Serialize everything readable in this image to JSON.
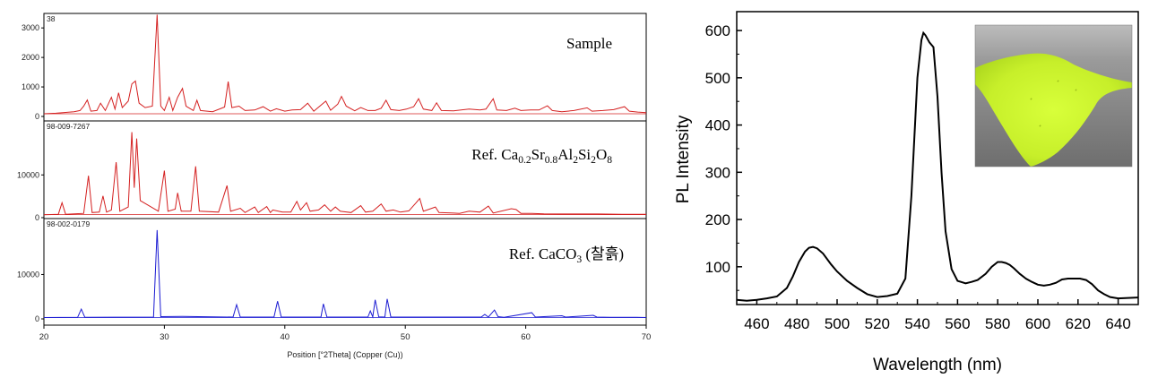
{
  "chart_data": [
    {
      "type": "line",
      "subtype": "stacked-xrd",
      "xlabel": "Position [°2Theta] (Copper (Cu))",
      "xlim": [
        20,
        70
      ],
      "x_ticks": [
        "20",
        "30",
        "40",
        "50",
        "60",
        "70"
      ],
      "panels": [
        {
          "id": "38",
          "label_parts": [
            "Sample"
          ],
          "color": "#d42020",
          "ylim": [
            0,
            3400
          ],
          "y_ticks": [
            "0",
            "1000",
            "2000",
            "3000"
          ],
          "baseline": 90,
          "points": [
            [
              20,
              90
            ],
            [
              21.0,
              110
            ],
            [
              22.5,
              160
            ],
            [
              23.0,
              200
            ],
            [
              23.3,
              350
            ],
            [
              23.6,
              560
            ],
            [
              23.9,
              180
            ],
            [
              24.4,
              200
            ],
            [
              24.7,
              450
            ],
            [
              25.1,
              200
            ],
            [
              25.6,
              650
            ],
            [
              25.9,
              250
            ],
            [
              26.2,
              800
            ],
            [
              26.5,
              300
            ],
            [
              27.0,
              520
            ],
            [
              27.3,
              1100
            ],
            [
              27.6,
              1200
            ],
            [
              27.9,
              450
            ],
            [
              28.4,
              300
            ],
            [
              29.0,
              350
            ],
            [
              29.4,
              3450
            ],
            [
              29.7,
              350
            ],
            [
              30.0,
              200
            ],
            [
              30.4,
              650
            ],
            [
              30.7,
              200
            ],
            [
              31.1,
              650
            ],
            [
              31.5,
              950
            ],
            [
              31.8,
              350
            ],
            [
              32.4,
              200
            ],
            [
              32.7,
              550
            ],
            [
              33.0,
              200
            ],
            [
              34.0,
              160
            ],
            [
              35.0,
              320
            ],
            [
              35.3,
              1180
            ],
            [
              35.6,
              300
            ],
            [
              36.2,
              350
            ],
            [
              36.7,
              200
            ],
            [
              37.5,
              220
            ],
            [
              38.2,
              330
            ],
            [
              38.8,
              180
            ],
            [
              39.3,
              260
            ],
            [
              40.0,
              180
            ],
            [
              40.6,
              220
            ],
            [
              41.3,
              230
            ],
            [
              41.9,
              450
            ],
            [
              42.4,
              180
            ],
            [
              43.4,
              520
            ],
            [
              43.8,
              210
            ],
            [
              44.4,
              420
            ],
            [
              44.7,
              680
            ],
            [
              45.1,
              350
            ],
            [
              45.8,
              190
            ],
            [
              46.3,
              300
            ],
            [
              46.9,
              200
            ],
            [
              47.5,
              200
            ],
            [
              48.0,
              280
            ],
            [
              48.4,
              550
            ],
            [
              48.8,
              230
            ],
            [
              49.5,
              200
            ],
            [
              50.1,
              250
            ],
            [
              50.7,
              330
            ],
            [
              51.1,
              600
            ],
            [
              51.5,
              250
            ],
            [
              52.2,
              200
            ],
            [
              52.6,
              460
            ],
            [
              53.0,
              200
            ],
            [
              54.0,
              190
            ],
            [
              55.3,
              250
            ],
            [
              56.2,
              220
            ],
            [
              56.7,
              250
            ],
            [
              57.3,
              600
            ],
            [
              57.6,
              220
            ],
            [
              58.4,
              200
            ],
            [
              59.1,
              280
            ],
            [
              59.6,
              200
            ],
            [
              60.4,
              220
            ],
            [
              61.1,
              220
            ],
            [
              61.8,
              360
            ],
            [
              62.2,
              200
            ],
            [
              63.0,
              160
            ],
            [
              64.0,
              200
            ],
            [
              65.1,
              290
            ],
            [
              65.5,
              180
            ],
            [
              66.4,
              200
            ],
            [
              67.3,
              230
            ],
            [
              68.2,
              330
            ],
            [
              68.6,
              180
            ],
            [
              69.3,
              150
            ],
            [
              70,
              130
            ]
          ]
        },
        {
          "id": "98-009-7267",
          "label_parts": [
            "Ref. Ca",
            "0.2",
            "Sr",
            "0.8",
            "Al",
            "2",
            "Si",
            "2",
            "O",
            "8"
          ],
          "color": "#d42020",
          "ylim": [
            0,
            22000
          ],
          "y_ticks": [
            "0",
            "10000"
          ],
          "baseline": 700,
          "points": [
            [
              20,
              700
            ],
            [
              21.2,
              800
            ],
            [
              21.5,
              3500
            ],
            [
              21.8,
              800
            ],
            [
              23.3,
              1000
            ],
            [
              23.7,
              9800
            ],
            [
              24.0,
              1200
            ],
            [
              24.6,
              1300
            ],
            [
              24.9,
              5100
            ],
            [
              25.2,
              1300
            ],
            [
              25.6,
              1800
            ],
            [
              26.0,
              13000
            ],
            [
              26.3,
              1500
            ],
            [
              27.0,
              2500
            ],
            [
              27.3,
              20000
            ],
            [
              27.5,
              7000
            ],
            [
              27.7,
              18500
            ],
            [
              28.0,
              4000
            ],
            [
              29.5,
              1500
            ],
            [
              30.0,
              11000
            ],
            [
              30.3,
              1500
            ],
            [
              30.9,
              2000
            ],
            [
              31.1,
              5800
            ],
            [
              31.4,
              1500
            ],
            [
              32.2,
              1500
            ],
            [
              32.6,
              12000
            ],
            [
              32.9,
              1500
            ],
            [
              34.5,
              1300
            ],
            [
              35.2,
              7500
            ],
            [
              35.5,
              1500
            ],
            [
              36.3,
              2200
            ],
            [
              36.7,
              1200
            ],
            [
              37.5,
              2500
            ],
            [
              37.8,
              1200
            ],
            [
              38.5,
              2600
            ],
            [
              38.8,
              1200
            ],
            [
              39.0,
              1800
            ],
            [
              39.8,
              1300
            ],
            [
              40.5,
              1300
            ],
            [
              41.0,
              3800
            ],
            [
              41.3,
              1800
            ],
            [
              41.8,
              3500
            ],
            [
              42.1,
              1500
            ],
            [
              42.8,
              1800
            ],
            [
              43.3,
              3000
            ],
            [
              43.8,
              1500
            ],
            [
              44.2,
              2500
            ],
            [
              44.6,
              1500
            ],
            [
              45.5,
              1200
            ],
            [
              46.3,
              2800
            ],
            [
              46.7,
              1300
            ],
            [
              47.3,
              1500
            ],
            [
              48.0,
              3200
            ],
            [
              48.4,
              1500
            ],
            [
              49.0,
              1800
            ],
            [
              49.6,
              1300
            ],
            [
              50.3,
              1600
            ],
            [
              50.9,
              3500
            ],
            [
              51.2,
              4500
            ],
            [
              51.5,
              1500
            ],
            [
              52.5,
              2500
            ],
            [
              52.8,
              1200
            ],
            [
              53.8,
              1100
            ],
            [
              54.5,
              1000
            ],
            [
              55.3,
              1500
            ],
            [
              56.2,
              1300
            ],
            [
              56.9,
              2700
            ],
            [
              57.3,
              1100
            ],
            [
              58.8,
              2100
            ],
            [
              59.2,
              1900
            ],
            [
              59.6,
              1000
            ],
            [
              60.5,
              1000
            ],
            [
              61.5,
              900
            ],
            [
              63.0,
              850
            ],
            [
              64.5,
              850
            ],
            [
              66.0,
              850
            ],
            [
              68.0,
              800
            ],
            [
              70,
              800
            ]
          ]
        },
        {
          "id": "98-002-0179",
          "label_parts": [
            "Ref. CaCO",
            "3",
            " (찰흙)"
          ],
          "color": "#1a1ad2",
          "ylim": [
            0,
            22000
          ],
          "y_ticks": [
            "0",
            "10000"
          ],
          "baseline": 300,
          "points": [
            [
              20,
              300
            ],
            [
              22.8,
              350
            ],
            [
              23.1,
              2200
            ],
            [
              23.4,
              350
            ],
            [
              29.1,
              400
            ],
            [
              29.4,
              20000
            ],
            [
              29.7,
              500
            ],
            [
              31.5,
              550
            ],
            [
              35.7,
              400
            ],
            [
              36.0,
              3200
            ],
            [
              36.3,
              400
            ],
            [
              39.1,
              400
            ],
            [
              39.4,
              4000
            ],
            [
              39.7,
              400
            ],
            [
              43.0,
              400
            ],
            [
              43.2,
              3400
            ],
            [
              43.5,
              400
            ],
            [
              46.9,
              400
            ],
            [
              47.1,
              1800
            ],
            [
              47.3,
              450
            ],
            [
              47.5,
              4300
            ],
            [
              47.8,
              450
            ],
            [
              48.3,
              400
            ],
            [
              48.5,
              4500
            ],
            [
              48.8,
              400
            ],
            [
              56.3,
              400
            ],
            [
              56.6,
              1000
            ],
            [
              56.9,
              400
            ],
            [
              57.4,
              2000
            ],
            [
              57.7,
              500
            ],
            [
              58.2,
              350
            ],
            [
              60.5,
              1400
            ],
            [
              60.8,
              400
            ],
            [
              61.5,
              500
            ],
            [
              63.0,
              700
            ],
            [
              63.3,
              400
            ],
            [
              64.5,
              600
            ],
            [
              65.6,
              800
            ],
            [
              65.9,
              400
            ],
            [
              67.0,
              350
            ],
            [
              69.2,
              350
            ],
            [
              70,
              300
            ]
          ]
        }
      ]
    },
    {
      "type": "line",
      "xlabel": "Wavelength (nm)",
      "ylabel": "PL Intensity",
      "xlim": [
        450,
        650
      ],
      "ylim": [
        20,
        640
      ],
      "x_ticks": [
        460,
        480,
        500,
        520,
        540,
        560,
        580,
        600,
        620,
        640
      ],
      "y_ticks": [
        100,
        200,
        300,
        400,
        500,
        600
      ],
      "color": "#000000",
      "inset_image": "green phosphor powder on gray surface",
      "series": [
        {
          "x": [
            450,
            455,
            460,
            465,
            470,
            475,
            478,
            481,
            484,
            486,
            488,
            490,
            493,
            497,
            500,
            505,
            510,
            515,
            520,
            525,
            530,
            534,
            537,
            540,
            542,
            543,
            544,
            546,
            548,
            550,
            552,
            554,
            557,
            560,
            564,
            567,
            570,
            574,
            577,
            580,
            582,
            584,
            586,
            588,
            591,
            594,
            597,
            600,
            603,
            606,
            609,
            612,
            615,
            618,
            621,
            624,
            627,
            630,
            633,
            636,
            640,
            645,
            650
          ],
          "y": [
            30,
            28,
            30,
            33,
            37,
            55,
            80,
            110,
            132,
            140,
            142,
            139,
            128,
            105,
            90,
            70,
            55,
            42,
            36,
            38,
            43,
            75,
            250,
            500,
            580,
            595,
            590,
            575,
            565,
            460,
            300,
            175,
            95,
            70,
            65,
            68,
            72,
            85,
            100,
            110,
            110,
            108,
            104,
            97,
            85,
            75,
            68,
            62,
            60,
            62,
            66,
            73,
            75,
            75,
            75,
            72,
            63,
            50,
            42,
            36,
            33,
            34,
            35
          ]
        }
      ]
    }
  ]
}
